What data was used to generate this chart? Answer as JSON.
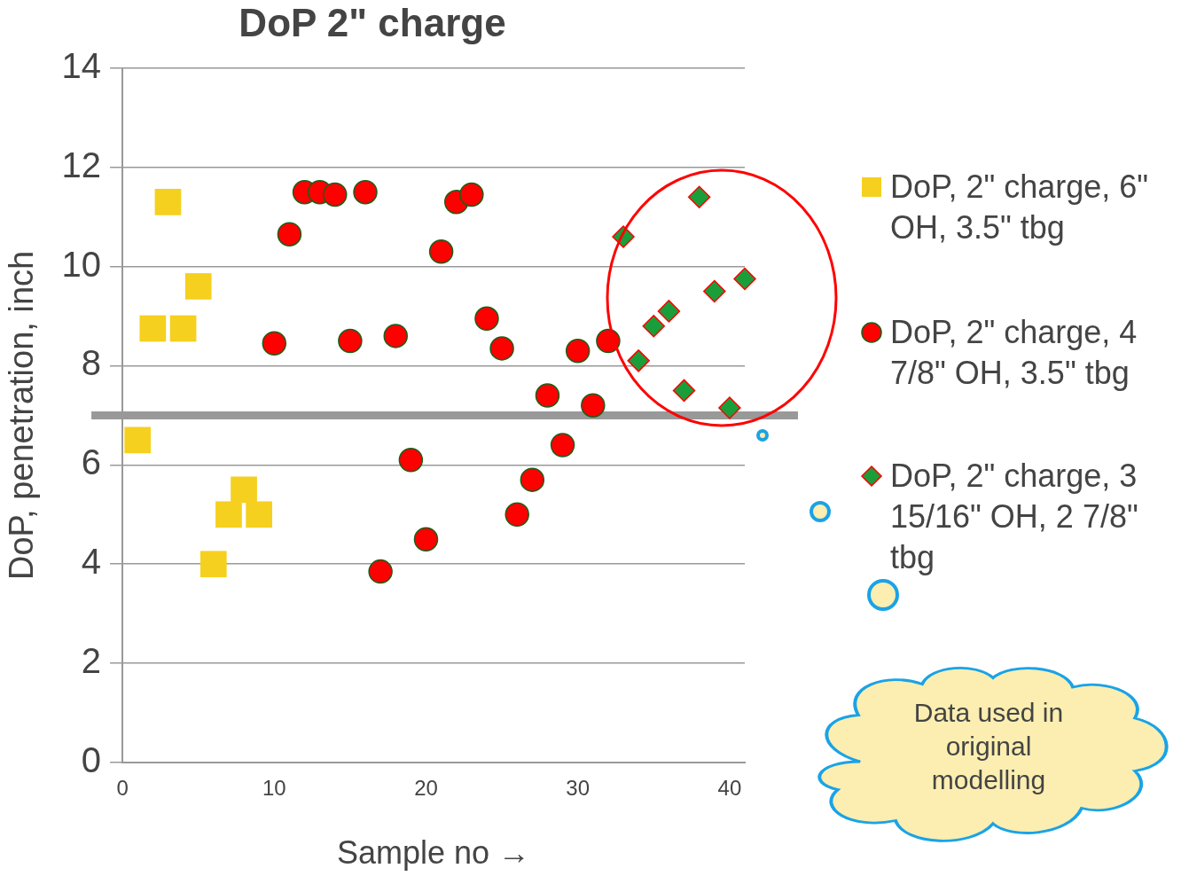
{
  "chart_data": {
    "type": "scatter",
    "title": "DoP 2\" charge",
    "xlabel": "Sample no →",
    "ylabel": "DoP, penetration, inch",
    "xlim": [
      0,
      41
    ],
    "xticks": [
      0,
      10,
      20,
      30,
      40
    ],
    "ylim": [
      0,
      14
    ],
    "yticks": [
      0,
      2,
      4,
      6,
      8,
      10,
      12,
      14
    ],
    "grid": "y",
    "legend": "right",
    "series": [
      {
        "name": "DoP, 2\" charge, 6\" OH, 3.5\" tbg",
        "color": "#f5d01e",
        "marker": "square",
        "x": [
          1,
          2,
          3,
          4,
          5,
          6,
          7,
          8,
          9
        ],
        "values": [
          6.5,
          8.75,
          11.3,
          8.75,
          9.6,
          4.0,
          5.0,
          5.5,
          5.0
        ]
      },
      {
        "name": "DoP, 2\" charge, 4 7/8\" OH, 3.5\" tbg",
        "color": "#ff0000",
        "marker": "circle",
        "x": [
          10,
          11,
          12,
          13,
          14,
          15,
          16,
          17,
          18,
          19,
          20,
          21,
          22,
          23,
          24,
          25,
          26,
          27,
          28,
          29,
          30,
          31,
          32
        ],
        "values": [
          8.45,
          10.65,
          11.5,
          11.5,
          11.45,
          8.5,
          11.5,
          3.85,
          8.6,
          6.1,
          4.5,
          10.3,
          11.3,
          11.45,
          8.95,
          8.35,
          5.0,
          5.7,
          7.4,
          6.4,
          8.3,
          7.2,
          8.5
        ]
      },
      {
        "name": "DoP, 2\" charge, 3 15/16\" OH, 2 7/8\" tbg",
        "color": "#1a9e3a",
        "marker": "diamond",
        "x": [
          33,
          34,
          35,
          36,
          37,
          38,
          39,
          40,
          41
        ],
        "values": [
          10.6,
          8.1,
          8.8,
          9.1,
          7.5,
          11.4,
          9.5,
          7.15,
          9.75
        ]
      }
    ],
    "ref_lines": [
      {
        "axis": "y",
        "value": 7,
        "color": "#999999"
      }
    ],
    "annotations": [
      "Data used in original modelling"
    ]
  }
}
